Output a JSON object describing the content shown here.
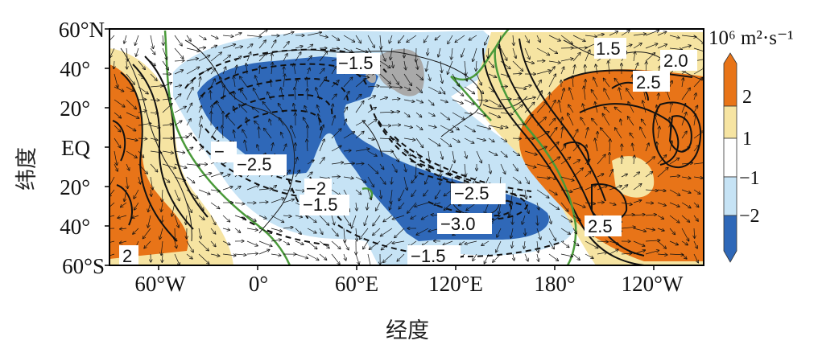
{
  "map": {
    "lat_ticks": [
      "60°N",
      "40°",
      "20°",
      "EQ",
      "20°",
      "40°",
      "60°S"
    ],
    "lon_ticks": [
      "60°W",
      "0°",
      "60°E",
      "120°E",
      "180°",
      "120°W"
    ],
    "y_title": "纬度",
    "x_title": "经度"
  },
  "colorbar": {
    "unit_label": "10⁶ m²·s⁻¹",
    "tick_labels": [
      "2",
      "1",
      "−1",
      "−2"
    ],
    "colors": {
      "strong_positive": "#e87418",
      "weak_positive": "#f6e4a2",
      "neutral": "#ffffff",
      "weak_negative": "#c6e3f5",
      "strong_negative": "#2f68b8"
    }
  },
  "contour_labels": [
    {
      "id": "cl-neg15-top",
      "text": "−1.5"
    },
    {
      "id": "cl-15-pac",
      "text": "1.5"
    },
    {
      "id": "cl-20-pac",
      "text": "2.0"
    },
    {
      "id": "cl-25-pac",
      "text": "2.5"
    },
    {
      "id": "cl-neg-atl",
      "text": "−"
    },
    {
      "id": "cl-neg25-atl",
      "text": "−2.5"
    },
    {
      "id": "cl-neg2-af",
      "text": "−2"
    },
    {
      "id": "cl-neg15-io",
      "text": "−1.5"
    },
    {
      "id": "cl-neg25-aus",
      "text": "−2.5"
    },
    {
      "id": "cl-neg30-aus",
      "text": "−3.0"
    },
    {
      "id": "cl-25-spac",
      "text": "2.5"
    },
    {
      "id": "cl-neg15-so",
      "text": "−1.5"
    },
    {
      "id": "cl-2-sam",
      "text": "2"
    }
  ]
}
